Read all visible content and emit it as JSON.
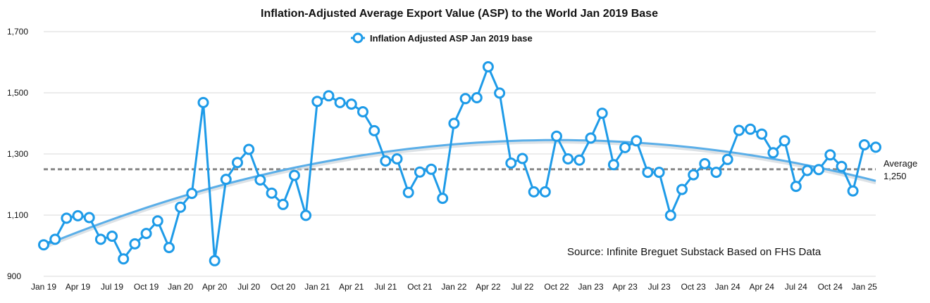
{
  "chart_data": {
    "type": "line",
    "title": "Inflation-Adjusted Average Export Value (ASP) to the World Jan 2019 Base",
    "xlabel": "",
    "ylabel": "",
    "ylim": [
      900,
      1700
    ],
    "yticks": [
      900,
      1100,
      1300,
      1500,
      1700
    ],
    "ytick_labels": [
      "900",
      "1,100",
      "1,300",
      "1,500",
      "1,700"
    ],
    "x_tick_labels": [
      "Jan 19",
      "Apr 19",
      "Jul 19",
      "Oct 19",
      "Jan 20",
      "Apr 20",
      "Jul 20",
      "Oct 20",
      "Jan 21",
      "Apr 21",
      "Jul 21",
      "Oct 21",
      "Jan 22",
      "Apr 22",
      "Jul 22",
      "Oct 22",
      "Jan 23",
      "Apr 23",
      "Jul 23",
      "Oct 23",
      "Jan 24",
      "Apr 24",
      "Jul 24",
      "Oct 24",
      "Jan 25"
    ],
    "grid": true,
    "legend_position": "top-center",
    "series": [
      {
        "name": "Inflation Adjusted ASP Jan 2019 base",
        "color": "#1e9be8",
        "values": [
          1003,
          1021,
          1090,
          1098,
          1092,
          1021,
          1031,
          957,
          1006,
          1040,
          1081,
          994,
          1126,
          1171,
          1468,
          951,
          1217,
          1272,
          1315,
          1215,
          1172,
          1135,
          1230,
          1099,
          1472,
          1490,
          1468,
          1463,
          1438,
          1376,
          1277,
          1284,
          1174,
          1241,
          1250,
          1155,
          1400,
          1481,
          1484,
          1585,
          1499,
          1270,
          1285,
          1176,
          1176,
          1358,
          1284,
          1280,
          1352,
          1433,
          1265,
          1321,
          1343,
          1240,
          1240,
          1099,
          1184,
          1232,
          1268,
          1240,
          1282,
          1377,
          1381,
          1365,
          1304,
          1343,
          1194,
          1246,
          1249,
          1297,
          1259,
          1179,
          1330,
          1322
        ]
      }
    ],
    "trend": {
      "name": "Polynomial trend",
      "color": "#5aaee8",
      "start": 1000,
      "peak": 1333,
      "end": 1212
    },
    "average": {
      "value": 1250,
      "label_line1": "Average",
      "label_line2": "1,250",
      "color": "#888888"
    },
    "annotation": "Source: Infinite Breguet Substack Based on FHS Data"
  }
}
